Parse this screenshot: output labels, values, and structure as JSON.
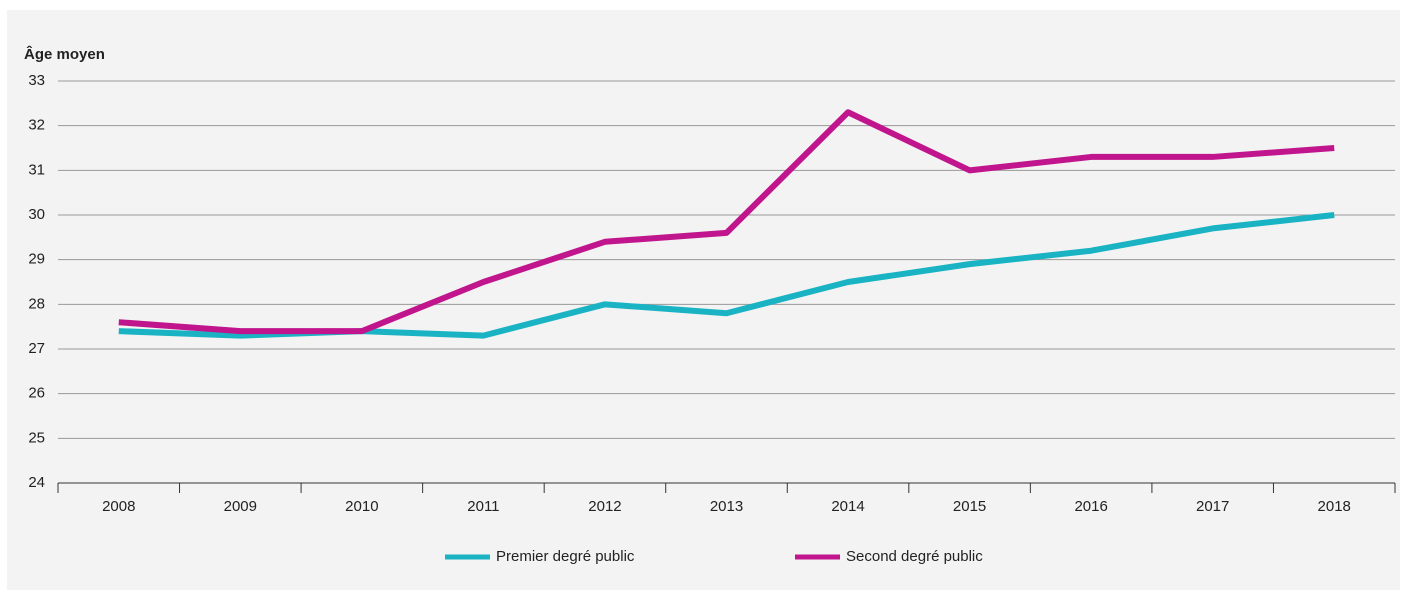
{
  "chart_data": {
    "type": "line",
    "y_label": "Âge moyen",
    "categories": [
      "2008",
      "2009",
      "2010",
      "2011",
      "2012",
      "2013",
      "2014",
      "2015",
      "2016",
      "2017",
      "2018"
    ],
    "series": [
      {
        "name": "Premier degré public",
        "color": "#1ab3c4",
        "values": [
          27.4,
          27.3,
          27.4,
          27.3,
          28.0,
          27.8,
          28.5,
          28.9,
          29.2,
          29.7,
          30.0
        ]
      },
      {
        "name": "Second degré public",
        "color": "#c0158c",
        "values": [
          27.6,
          27.4,
          27.4,
          28.5,
          29.4,
          29.6,
          32.3,
          31.0,
          31.3,
          31.3,
          31.5
        ]
      }
    ],
    "ylim": [
      24,
      33
    ],
    "yticks": [
      24,
      25,
      26,
      27,
      28,
      29,
      30,
      31,
      32,
      33
    ],
    "grid": true,
    "legend": "bottom"
  }
}
